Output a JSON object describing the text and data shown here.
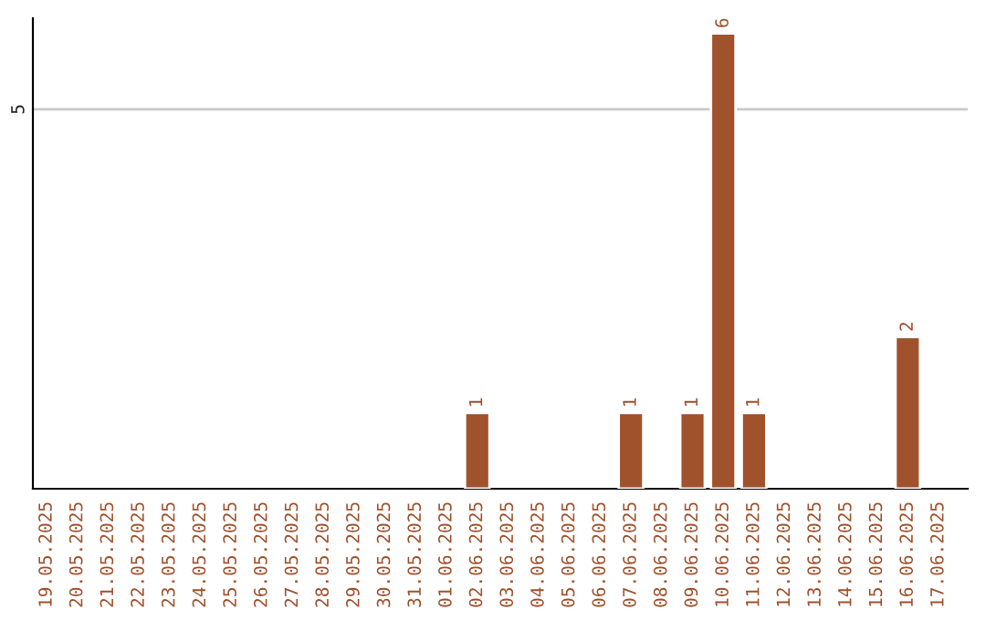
{
  "chart_data": {
    "type": "bar",
    "categories": [
      "19.05.2025",
      "20.05.2025",
      "21.05.2025",
      "22.05.2025",
      "23.05.2025",
      "24.05.2025",
      "25.05.2025",
      "26.05.2025",
      "27.05.2025",
      "28.05.2025",
      "29.05.2025",
      "30.05.2025",
      "31.05.2025",
      "01.06.2025",
      "02.06.2025",
      "03.06.2025",
      "04.06.2025",
      "05.06.2025",
      "06.06.2025",
      "07.06.2025",
      "08.06.2025",
      "09.06.2025",
      "10.06.2025",
      "11.06.2025",
      "12.06.2025",
      "13.06.2025",
      "14.06.2025",
      "15.06.2025",
      "16.06.2025",
      "17.06.2025"
    ],
    "values": [
      null,
      null,
      null,
      null,
      null,
      null,
      null,
      null,
      null,
      null,
      null,
      null,
      null,
      null,
      1,
      null,
      null,
      null,
      null,
      1,
      null,
      1,
      6,
      1,
      null,
      null,
      null,
      null,
      2,
      null
    ],
    "value_labels": [
      null,
      null,
      null,
      null,
      null,
      null,
      null,
      null,
      null,
      null,
      null,
      null,
      null,
      null,
      "1",
      null,
      null,
      null,
      null,
      "1",
      null,
      "1",
      "6",
      "1",
      null,
      null,
      null,
      null,
      "2",
      null
    ],
    "color": "#a0522d",
    "ylim": [
      0,
      6.2
    ],
    "yticks": [
      5
    ],
    "grid": "y",
    "legend": false
  }
}
